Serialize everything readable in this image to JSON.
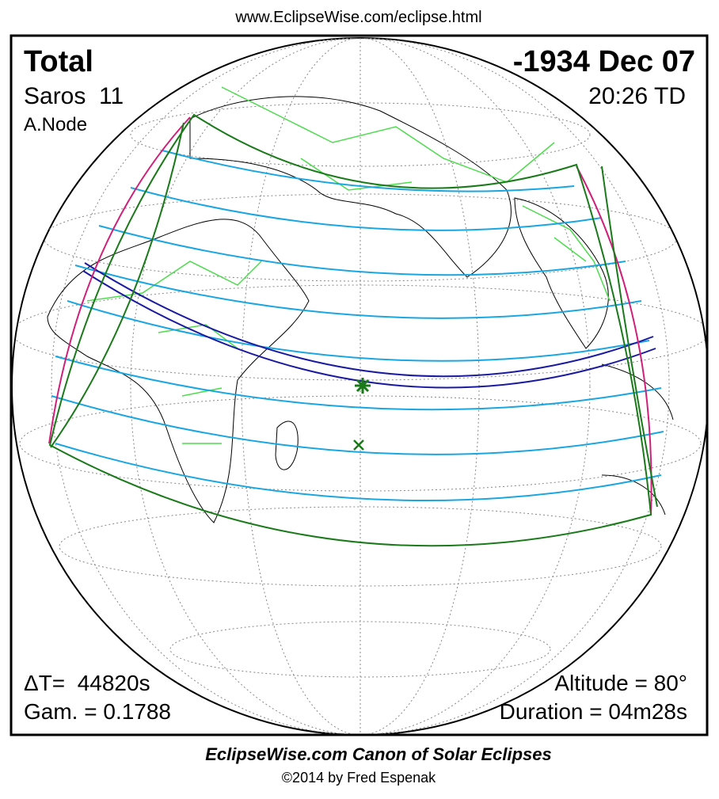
{
  "header": {
    "url": "www.EclipseWise.com/eclipse.html"
  },
  "eclipse": {
    "type": "Total",
    "date": "-1934 Dec 07",
    "saros": "Saros  11",
    "time": "20:26 TD",
    "node": "A.Node",
    "delta_t": "ΔT=  44820s",
    "gamma": "Gam. = 0.1788",
    "altitude": "Altitude = 80°",
    "duration": "Duration = 04m28s"
  },
  "footer": {
    "title": "EclipseWise.com Canon of Solar Eclipses",
    "credit": "©2014 by Fred Espenak"
  }
}
